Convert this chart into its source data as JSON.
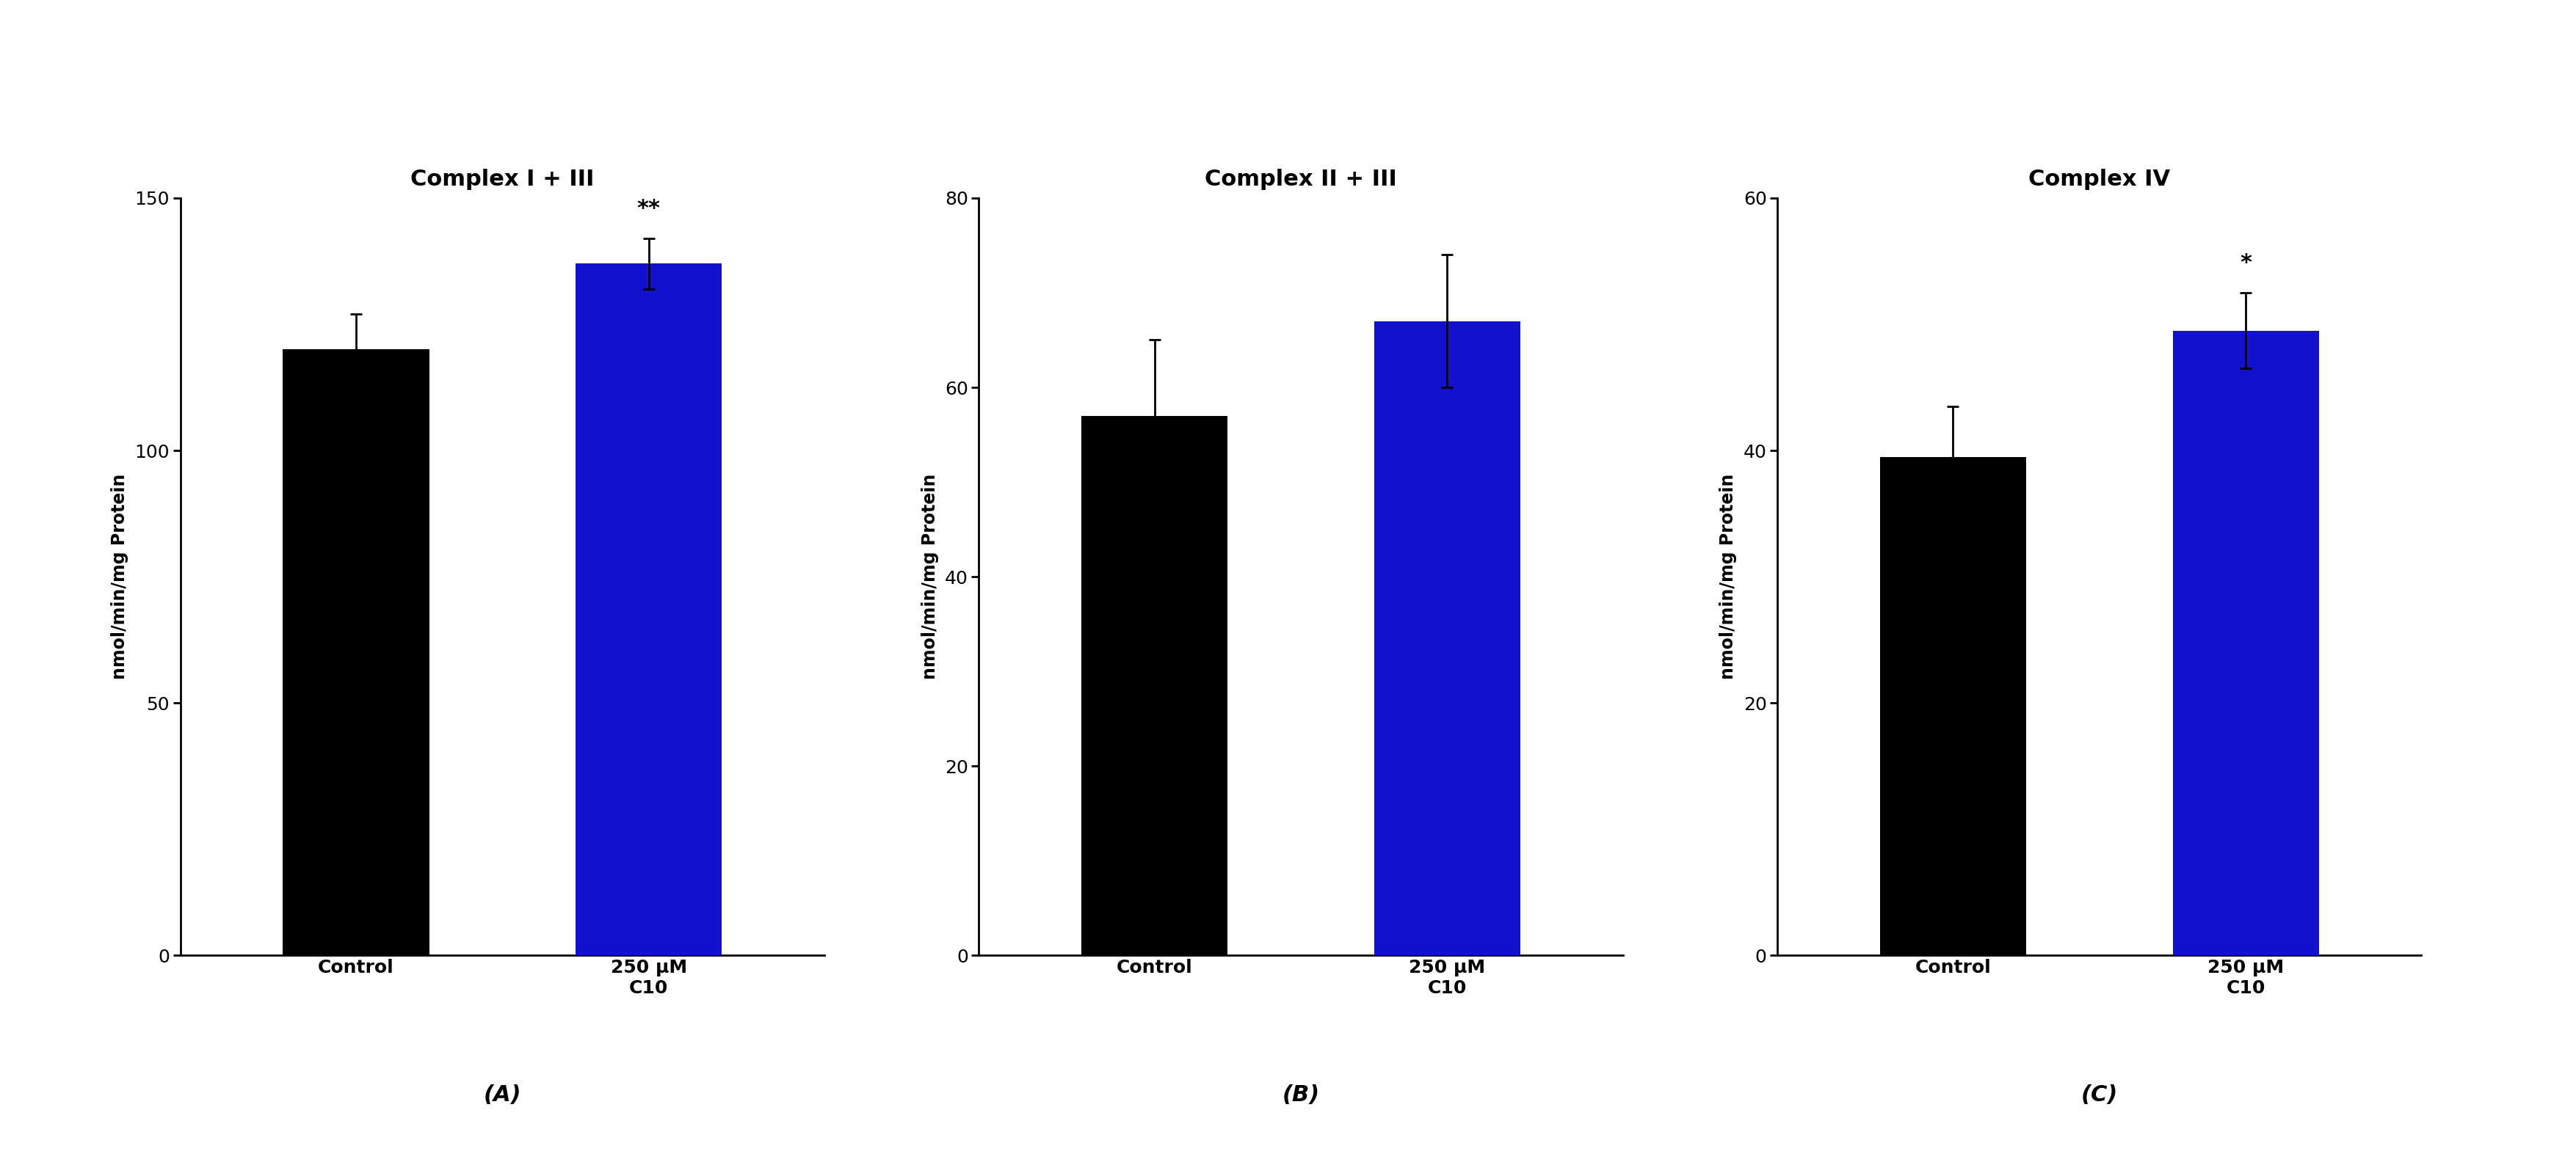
{
  "panels": [
    {
      "title": "Complex I + III",
      "label": "(A)",
      "values": [
        120,
        137
      ],
      "errors": [
        7,
        5
      ],
      "ylim": [
        0,
        150
      ],
      "yticks": [
        0,
        50,
        100,
        150
      ],
      "significance": [
        "",
        "**"
      ]
    },
    {
      "title": "Complex II + III",
      "label": "(B)",
      "values": [
        57,
        67
      ],
      "errors": [
        8,
        7
      ],
      "ylim": [
        0,
        80
      ],
      "yticks": [
        0,
        20,
        40,
        60,
        80
      ],
      "significance": [
        "",
        ""
      ]
    },
    {
      "title": "Complex IV",
      "label": "(C)",
      "values": [
        39.5,
        49.5
      ],
      "errors": [
        4,
        3
      ],
      "ylim": [
        0,
        60
      ],
      "yticks": [
        0,
        20,
        40,
        60
      ],
      "significance": [
        "",
        "*"
      ]
    }
  ],
  "bar_colors": [
    "#000000",
    "#1212cc"
  ],
  "categories": [
    "Control",
    "250 μM\nC10"
  ],
  "ylabel": "nmol/min/mg Protein",
  "background_color": "#ffffff",
  "title_fontsize": 22,
  "tick_fontsize": 18,
  "ylabel_fontsize": 17,
  "label_fontsize": 22,
  "sig_fontsize": 22,
  "bar_width": 0.5,
  "capsize": 6,
  "error_linewidth": 2.0,
  "spine_linewidth": 2.0
}
